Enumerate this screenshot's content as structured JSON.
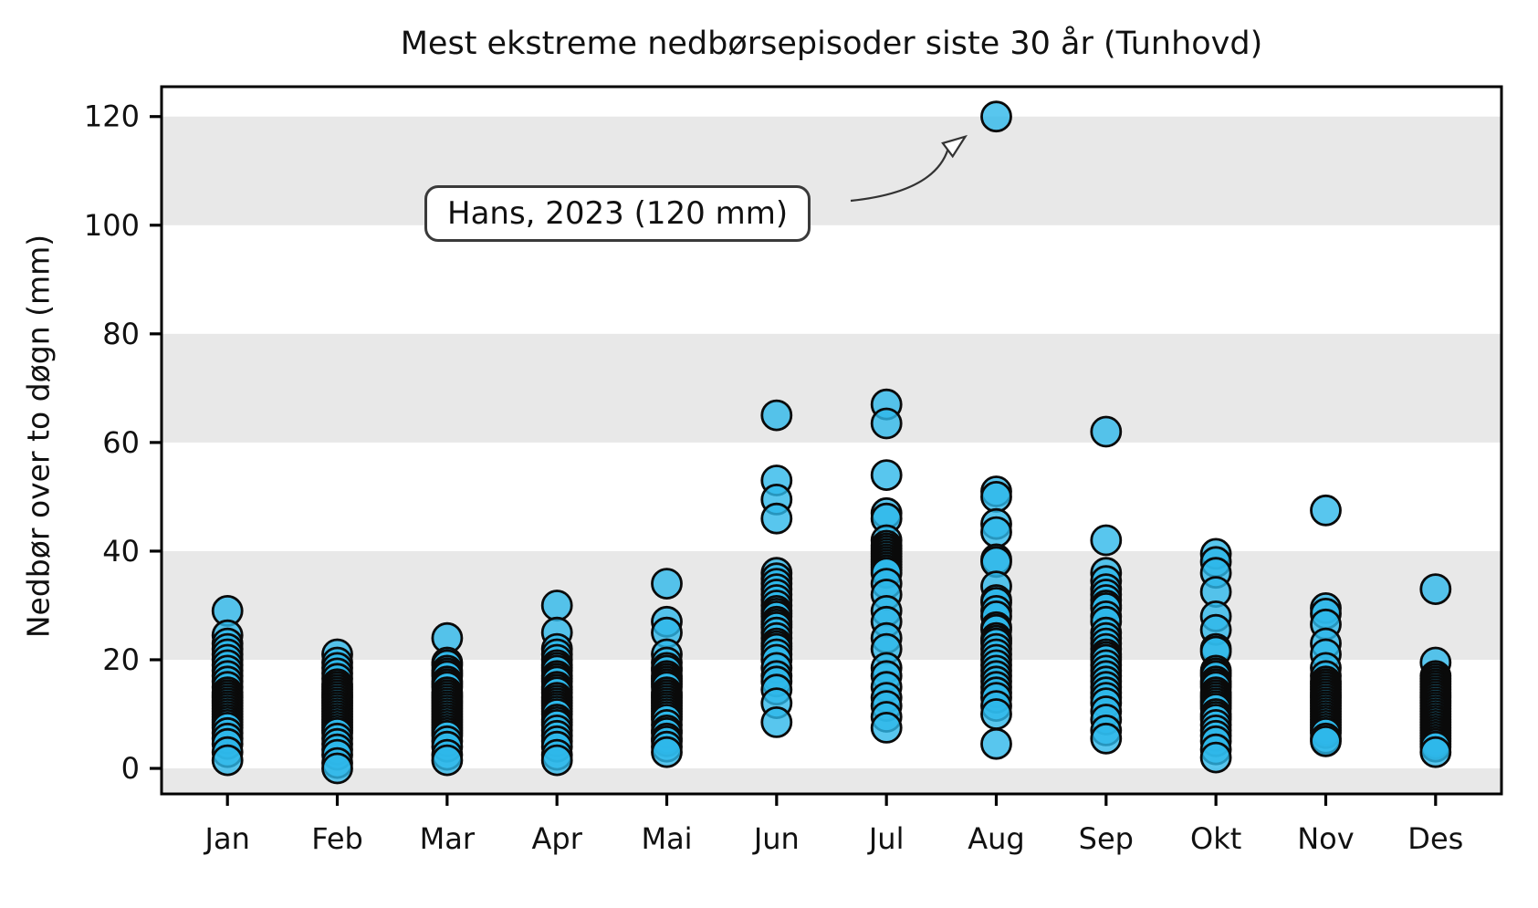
{
  "chart_data": {
    "type": "scatter",
    "title": "Mest ekstreme nedbørsepisoder siste 30 år (Tunhovd)",
    "ylabel": "Nedbør over to døgn (mm)",
    "xlabel": "",
    "categories": [
      "Jan",
      "Feb",
      "Mar",
      "Apr",
      "Mai",
      "Jun",
      "Jul",
      "Aug",
      "Sep",
      "Okt",
      "Nov",
      "Des"
    ],
    "yticks": [
      0,
      20,
      40,
      60,
      80,
      100,
      120
    ],
    "ytick_labels": [
      "0",
      "20",
      "40",
      "60",
      "80",
      "100",
      "120"
    ],
    "ylim": [
      -4.7,
      125.5
    ],
    "grid": "horizontal-bands",
    "bands": [
      [
        100,
        120
      ],
      [
        60,
        80
      ],
      [
        20,
        40
      ],
      [
        -4.7,
        0
      ]
    ],
    "band_color": "#e8e8e8",
    "axis_color": "#000000",
    "marker": {
      "shape": "circle",
      "radius": 16,
      "fill": "#2eb8ea",
      "fill_opacity": 0.8,
      "edge": "#0a0a0a",
      "edge_width": 2.8
    },
    "legend": "none",
    "series": [
      {
        "name": "Jan",
        "values": [
          29,
          24.5,
          23,
          22,
          21,
          20,
          19,
          18,
          17,
          16,
          15,
          14,
          13.5,
          13,
          12.5,
          12,
          11.5,
          11,
          10.5,
          10,
          9.5,
          9,
          8.5,
          8,
          7.5,
          6.5,
          5.5,
          4.5,
          3,
          1.5
        ]
      },
      {
        "name": "Feb",
        "values": [
          21,
          19.5,
          18.5,
          17.5,
          16.5,
          15.5,
          15,
          14.5,
          14,
          13.5,
          13,
          12.5,
          12,
          11.5,
          11,
          10.5,
          10,
          9.5,
          9,
          8.5,
          8,
          7.5,
          7,
          6.5,
          5.5,
          4.5,
          3.5,
          2.5,
          1,
          0
        ]
      },
      {
        "name": "Mar",
        "values": [
          24,
          19.5,
          19,
          18,
          17.5,
          17,
          16,
          15.5,
          15,
          14,
          13.5,
          13,
          12.5,
          12,
          11.5,
          11,
          10.5,
          10,
          9.5,
          9,
          8.5,
          8,
          7.5,
          7,
          6.5,
          6,
          5,
          4,
          2.5,
          1.5
        ]
      },
      {
        "name": "Apr",
        "values": [
          30,
          25,
          22,
          21,
          20,
          19,
          18.5,
          18,
          17,
          16.5,
          16,
          15,
          14.5,
          14,
          13,
          12.5,
          12,
          11.5,
          11,
          10.5,
          10,
          9,
          8.5,
          8,
          7,
          6,
          5,
          4,
          2.5,
          1.5
        ]
      },
      {
        "name": "Mai",
        "values": [
          34,
          27,
          25,
          21,
          19.5,
          18.5,
          18,
          17,
          16.5,
          16,
          15.5,
          15,
          14,
          13.5,
          13,
          12.5,
          12,
          11.5,
          11,
          10.5,
          10,
          9.5,
          9,
          8,
          7,
          6.5,
          5.5,
          5,
          4,
          3
        ]
      },
      {
        "name": "Jun",
        "values": [
          65,
          53,
          49.5,
          46,
          36,
          35,
          34,
          33,
          32,
          31,
          30,
          29,
          28.5,
          28,
          27,
          26.5,
          26,
          25,
          24,
          23,
          22.5,
          22,
          21,
          20,
          18.5,
          17,
          16,
          14.5,
          12,
          8.5
        ]
      },
      {
        "name": "Jul",
        "values": [
          67,
          63.5,
          54,
          47,
          46,
          42,
          41,
          40.5,
          40,
          39.5,
          39,
          38.5,
          38,
          37.5,
          37,
          36.5,
          36,
          34,
          32,
          29,
          27,
          24,
          22,
          18.5,
          17,
          15,
          13,
          11.5,
          9.5,
          7.5
        ]
      },
      {
        "name": "Aug",
        "values": [
          120,
          51,
          50,
          45,
          43.5,
          38.5,
          38,
          33.5,
          31,
          30.5,
          29,
          28,
          26,
          25.5,
          24,
          23.5,
          23,
          22,
          21,
          20,
          19,
          18,
          17,
          16,
          15,
          14,
          13,
          11.5,
          10,
          4.5
        ]
      },
      {
        "name": "Sep",
        "values": [
          62,
          42,
          36,
          34.5,
          33,
          32,
          31,
          30,
          29.5,
          28,
          27,
          25,
          24,
          23,
          22,
          21,
          20.5,
          20,
          19,
          18,
          17,
          16,
          15,
          14,
          13,
          12,
          10.5,
          9,
          7,
          5.5
        ]
      },
      {
        "name": "Okt",
        "values": [
          39.5,
          38,
          36,
          32.5,
          28,
          25.5,
          22,
          21.5,
          18,
          17.5,
          17,
          16,
          15.5,
          15,
          14,
          13.5,
          13,
          12.5,
          12,
          11.5,
          11,
          10,
          9.5,
          9,
          8,
          7,
          6,
          5,
          3.5,
          2
        ]
      },
      {
        "name": "Nov",
        "values": [
          47.5,
          29.5,
          28.5,
          26.5,
          23,
          21,
          18.5,
          17,
          16,
          15.5,
          15,
          14.5,
          14,
          13.5,
          13,
          12.5,
          12,
          11.5,
          11,
          10.5,
          10,
          9.5,
          9,
          8.5,
          8,
          7.5,
          7,
          6.5,
          5.5,
          5
        ]
      },
      {
        "name": "Des",
        "values": [
          33,
          19.5,
          17,
          16.5,
          16,
          15.5,
          15,
          14.5,
          14,
          13.5,
          13,
          12.5,
          12,
          11.5,
          11,
          10.5,
          10,
          9.5,
          9,
          8.5,
          8,
          7.5,
          7,
          6.5,
          6,
          5.5,
          5,
          4.5,
          4,
          3
        ]
      }
    ],
    "annotation": {
      "text": "Hans, 2023 (120 mm)",
      "target_month": "Aug",
      "target_value_mm": 120
    }
  }
}
